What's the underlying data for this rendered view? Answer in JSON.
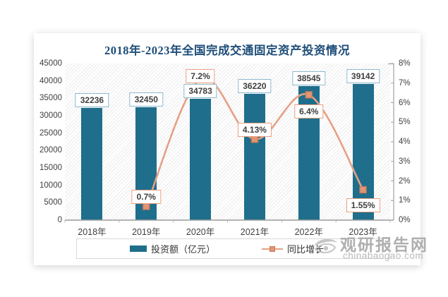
{
  "chart_data": {
    "type": "bar+line",
    "title": "2018年-2023年全国完成交通固定资产投资情况",
    "categories": [
      "2018年",
      "2019年",
      "2020年",
      "2021年",
      "2022年",
      "2023年"
    ],
    "series": [
      {
        "name": "投资额（亿元）",
        "type": "bar",
        "axis": "left",
        "color": "#1F6E8C",
        "values": [
          32236,
          32450,
          34783,
          36220,
          38545,
          39142
        ],
        "labels": [
          "32236",
          "32450",
          "34783",
          "36220",
          "38545",
          "39142"
        ]
      },
      {
        "name": "同比增长",
        "type": "line",
        "axis": "right",
        "color": "#E5A086",
        "marker_fill": "#E19574",
        "marker_stroke": "#C87B56",
        "x_indices": [
          1,
          2,
          3,
          4,
          5
        ],
        "values": [
          0.7,
          7.2,
          4.13,
          6.4,
          1.55
        ],
        "labels": [
          "0.7%",
          "7.2%",
          "4.13%",
          "6.4%",
          "1.55%"
        ]
      }
    ],
    "left_axis": {
      "min": 0,
      "max": 45000,
      "step": 5000,
      "tick_labels": [
        "45000",
        "40000",
        "35000",
        "30000",
        "25000",
        "20000",
        "15000",
        "10000",
        "5000",
        "0"
      ]
    },
    "right_axis": {
      "min": 0,
      "max": 8,
      "step": 1,
      "tick_labels": [
        "8%",
        "7%",
        "6%",
        "5%",
        "4%",
        "3%",
        "2%",
        "1%",
        "0%"
      ]
    },
    "layout": {
      "legend_position": "bottom",
      "grid": false,
      "plot_background": "diagonal-hatch",
      "smooth_line": true,
      "line_label_dy": [
        -14,
        -4,
        -13,
        24,
        22
      ]
    },
    "colors": {
      "title": "#1F4E79",
      "bar": "#1F6E8C",
      "line": "#E5A086",
      "bar_label_border": "#8FB9CF",
      "line_label_border": "#E8A183",
      "axis_line": "#A0A0A0",
      "text": "#3F3F3F"
    }
  },
  "watermark": {
    "site_name": "观研报告网",
    "site_url": "chinabaogao.com",
    "logo": "swirl-eye-logo"
  }
}
